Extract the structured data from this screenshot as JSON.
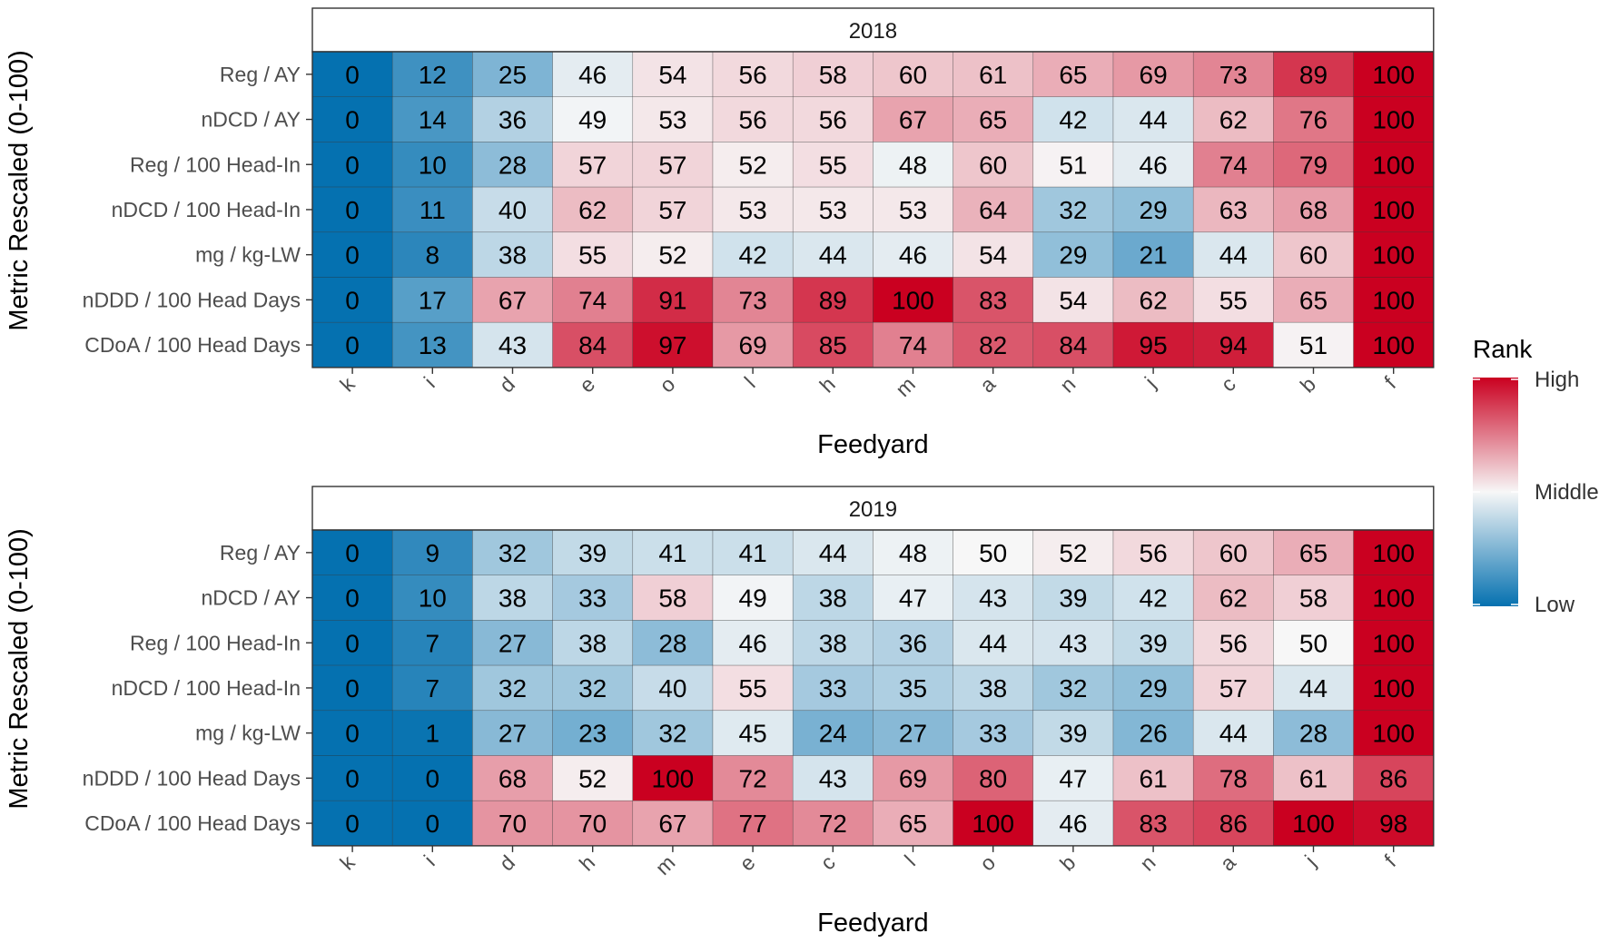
{
  "chart_data": [
    {
      "type": "heatmap",
      "facet_label": "2018",
      "xlabel": "Feedyard",
      "ylabel": "Metric Rescaled (0-100)",
      "categories": [
        "k",
        "i",
        "d",
        "e",
        "o",
        "l",
        "h",
        "m",
        "a",
        "n",
        "j",
        "c",
        "b",
        "f"
      ],
      "rows": [
        "Reg / AY",
        "nDCD / AY",
        "Reg / 100 Head-In",
        "nDCD / 100 Head-In",
        "mg / kg-LW",
        "nDDD / 100 Head Days",
        "CDoA / 100 Head Days"
      ],
      "values": [
        [
          0,
          12,
          25,
          46,
          54,
          56,
          58,
          60,
          61,
          65,
          69,
          73,
          89,
          100
        ],
        [
          0,
          14,
          36,
          49,
          53,
          56,
          56,
          67,
          65,
          42,
          44,
          62,
          76,
          100
        ],
        [
          0,
          10,
          28,
          57,
          57,
          52,
          55,
          48,
          60,
          51,
          46,
          74,
          79,
          100
        ],
        [
          0,
          11,
          40,
          62,
          57,
          53,
          53,
          53,
          64,
          32,
          29,
          63,
          68,
          100
        ],
        [
          0,
          8,
          38,
          55,
          52,
          42,
          44,
          46,
          54,
          29,
          21,
          44,
          60,
          100
        ],
        [
          0,
          17,
          67,
          74,
          91,
          73,
          89,
          100,
          83,
          54,
          62,
          55,
          65,
          100
        ],
        [
          0,
          13,
          43,
          84,
          97,
          69,
          85,
          74,
          82,
          84,
          95,
          94,
          51,
          100
        ]
      ]
    },
    {
      "type": "heatmap",
      "facet_label": "2019",
      "xlabel": "Feedyard",
      "ylabel": "Metric Rescaled (0-100)",
      "categories": [
        "k",
        "i",
        "d",
        "h",
        "m",
        "e",
        "c",
        "l",
        "o",
        "b",
        "n",
        "a",
        "j",
        "f"
      ],
      "rows": [
        "Reg / AY",
        "nDCD / AY",
        "Reg / 100 Head-In",
        "nDCD / 100 Head-In",
        "mg / kg-LW",
        "nDDD / 100 Head Days",
        "CDoA / 100 Head Days"
      ],
      "values": [
        [
          0,
          9,
          32,
          39,
          41,
          41,
          44,
          48,
          50,
          52,
          56,
          60,
          65,
          100
        ],
        [
          0,
          10,
          38,
          33,
          58,
          49,
          38,
          47,
          43,
          39,
          42,
          62,
          58,
          100
        ],
        [
          0,
          7,
          27,
          38,
          28,
          46,
          38,
          36,
          44,
          43,
          39,
          56,
          50,
          100
        ],
        [
          0,
          7,
          32,
          32,
          40,
          55,
          33,
          35,
          38,
          32,
          29,
          57,
          44,
          100
        ],
        [
          0,
          1,
          27,
          23,
          32,
          45,
          24,
          27,
          33,
          39,
          26,
          44,
          28,
          100
        ],
        [
          0,
          0,
          68,
          52,
          100,
          72,
          43,
          69,
          80,
          47,
          61,
          78,
          61,
          86
        ],
        [
          0,
          0,
          70,
          70,
          67,
          77,
          72,
          65,
          100,
          46,
          83,
          86,
          100,
          98
        ]
      ]
    }
  ],
  "legend": {
    "title": "Rank",
    "labels": [
      "High",
      "Middle",
      "Low"
    ],
    "colors": {
      "low": "#0571B0",
      "mid": "#F7F7F7",
      "high": "#CA0020"
    }
  }
}
